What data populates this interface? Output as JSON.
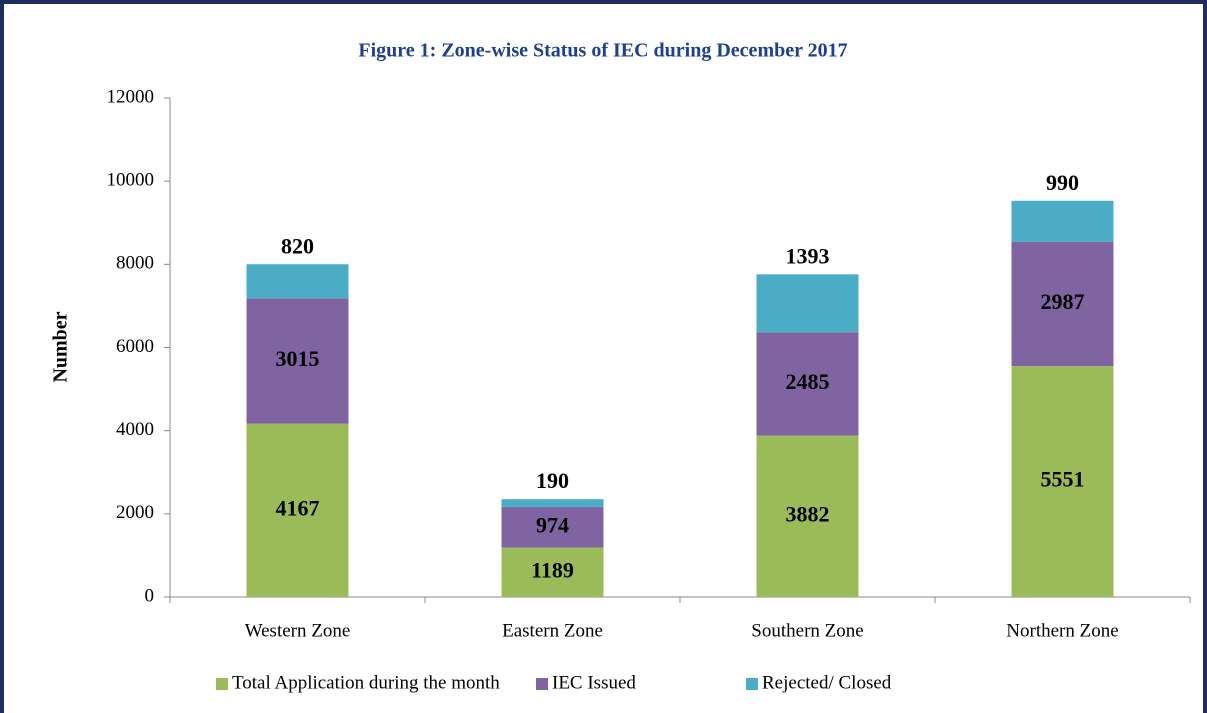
{
  "chart_data": {
    "type": "stacked_bar",
    "title": "Figure 1: Zone-wise Status of IEC during December 2017",
    "y_label": "Number",
    "categories": [
      "Western Zone",
      "Eastern Zone",
      "Southern Zone",
      "Northern Zone"
    ],
    "series": [
      {
        "name": "Total Application during the month",
        "color": "#9bbb59",
        "values": [
          4167,
          1189,
          3882,
          5551
        ]
      },
      {
        "name": "IEC Issued",
        "color": "#8064a2",
        "values": [
          3015,
          974,
          2485,
          2987
        ]
      },
      {
        "name": "Rejected/ Closed",
        "color": "#4bacc6",
        "values": [
          820,
          190,
          1393,
          990
        ]
      }
    ],
    "ylim": [
      0,
      12000
    ],
    "yticks": [
      0,
      2000,
      4000,
      6000,
      8000,
      10000,
      12000
    ],
    "legend": "bottom"
  }
}
